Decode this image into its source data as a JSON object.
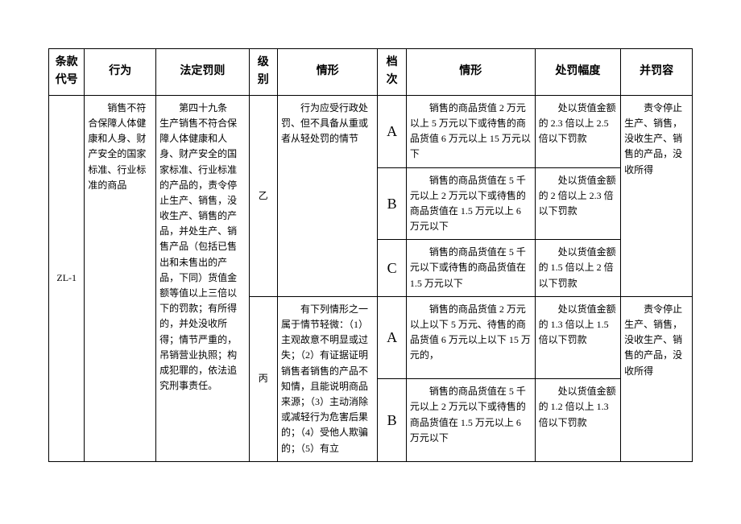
{
  "headers": {
    "code": "条款代号",
    "act": "行为",
    "penalty": "法定罚则",
    "level": "级别",
    "circ1": "情形",
    "tier": "档次",
    "circ2": "情形",
    "range": "处罚幅度",
    "extra": "并罚容"
  },
  "row": {
    "code": "ZL-1",
    "act": "销售不符合保障人体健康和人身、财产安全的国家标准、行业标准的商品",
    "penalty": "第四十九条　生产销售不符合保障人体健康和人身、财产安全的国家标准、行业标准的产品的，责令停止生产、销售，没收生产、销售的产品，并处生产、销售产品（包括已售出和未售出的产品，下同）货值金额等值以上三倍以下的罚款；有所得的，并处没收所得；情节严重的，吊销营业执照；构成犯罪的，依法追究刑事责任。",
    "levels": {
      "yi": {
        "label": "乙",
        "circ": "行为应受行政处罚、但不具备从重或者从轻处罚的情节",
        "extra": "责令停止生产、销售，没收生产、销售的产品，没收所得",
        "tiers": {
          "A": {
            "label": "A",
            "circ": "销售的商品货值 2 万元以上 5 万元以下或待售的商品货值 6 万元以上 15 万元以下",
            "range": "处以货值金额的 2.3 倍以上 2.5 倍以下罚款"
          },
          "B": {
            "label": "B",
            "circ": "销售的商品货值在 5 千元以上 2 万元以下或待售的商品货值在 1.5 万元以上 6 万元以下",
            "range": "处以货值金额的 2 倍以上 2.3 倍以下罚款"
          },
          "C": {
            "label": "C",
            "circ": "销售的商品货值在 5 千元以下或待售的商品货值在 1.5 万元以下",
            "range": "处以货值金额的 1.5 倍以上 2 倍以下罚款"
          }
        }
      },
      "bing": {
        "label": "丙",
        "circ": "有下列情形之一属于情节轻微：（1）主观故意不明显或过失；（2）有证据证明销售者销售的产品不知情，且能说明商品来源；（3）主动消除或减轻行为危害后果的；（4）受他人欺骗的；（5）有立",
        "extra": "责令停止生产、销售，没收生产、销售的产品，没收所得",
        "tiers": {
          "A": {
            "label": "A",
            "circ": "销售的商品货值 2 万元以上以下 5 万元、待售的商品货值 6 万元以上以下 15 万元的，",
            "range": "处以货值金额的 1.3 倍以上 1.5 倍以下罚款"
          },
          "B": {
            "label": "B",
            "circ": "销售的商品货值在 5 千元以上 2 万元以下或待售的商品货值在 1.5 万元以上 6 万元以下",
            "range": "处以货值金额的 1.2 倍以上 1.3 倍以下罚款"
          }
        }
      }
    }
  }
}
